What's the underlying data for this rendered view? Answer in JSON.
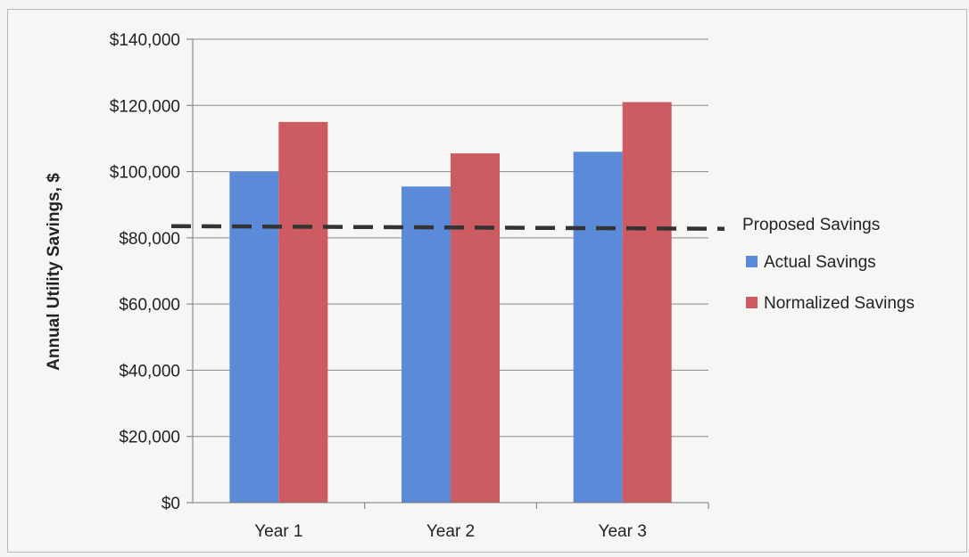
{
  "chart_data": {
    "type": "bar",
    "title": "",
    "xlabel": "",
    "ylabel": "Annual Utility Savings, $",
    "categories": [
      "Year 1",
      "Year 2",
      "Year 3"
    ],
    "ylim": [
      0,
      140000
    ],
    "yticks": [
      0,
      20000,
      40000,
      60000,
      80000,
      100000,
      120000,
      140000
    ],
    "ytick_labels": [
      "$0",
      "$20,000",
      "$40,000",
      "$60,000",
      "$80,000",
      "$100,000",
      "$120,000",
      "$140,000"
    ],
    "grid": true,
    "legend_position": "right",
    "series": [
      {
        "name": "Actual Savings",
        "values": [
          100000,
          95500,
          106000
        ],
        "color": "#5b8bd8"
      },
      {
        "name": "Normalized Savings",
        "values": [
          115000,
          105500,
          121000
        ],
        "color": "#cc5c62"
      }
    ],
    "reference_line": {
      "name": "Proposed Savings",
      "value": 83000,
      "style": "dashed",
      "color": "#333333"
    }
  }
}
